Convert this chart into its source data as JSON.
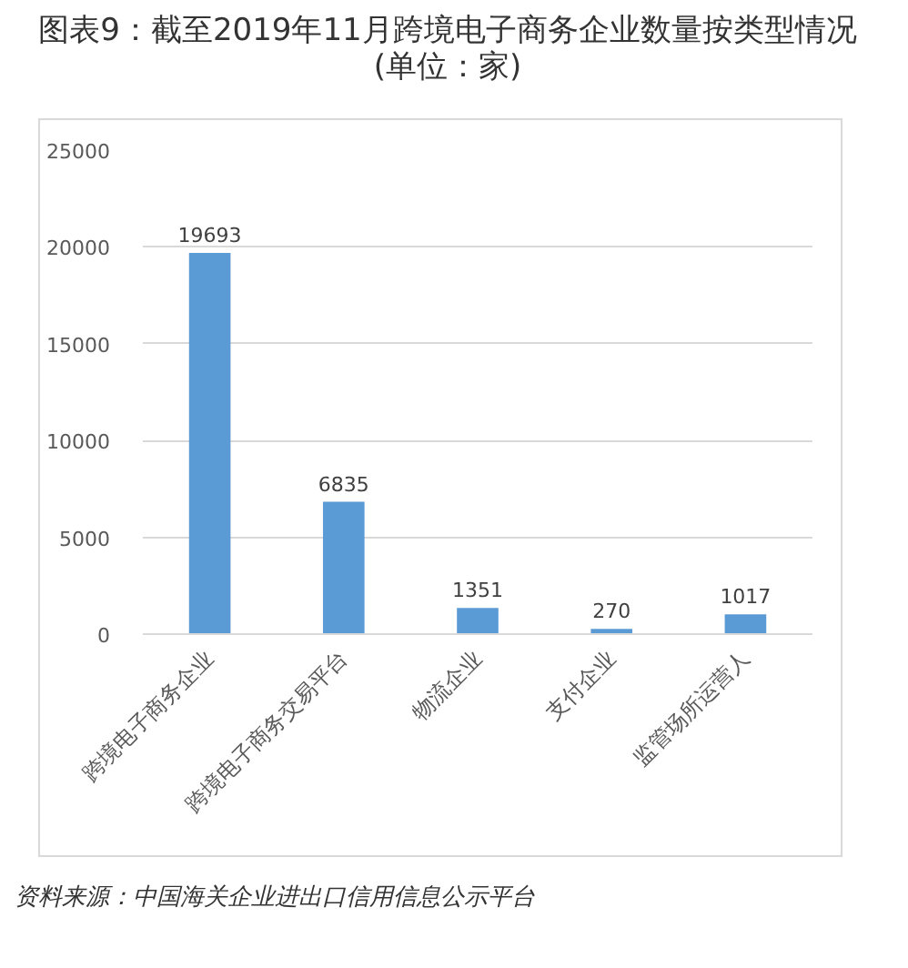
{
  "chart_data": {
    "type": "bar",
    "title": "图表9：截至2019年11月跨境电子商务企业数量按类型情况(单位：家)",
    "categories": [
      "跨境电子商务企业",
      "跨境电子商务交易平台",
      "物流企业",
      "支付企业",
      "监管场所运营人"
    ],
    "values": [
      19693,
      6835,
      1351,
      270,
      1017
    ],
    "color": "#5b9bd5",
    "ylim": [
      0,
      25000
    ],
    "yticks": [
      0,
      5000,
      10000,
      15000,
      20000,
      25000
    ],
    "grid": "y",
    "data_labels": true,
    "annotations": [
      "资料来源：中国海关企业进出口信用信息公示平台"
    ]
  }
}
